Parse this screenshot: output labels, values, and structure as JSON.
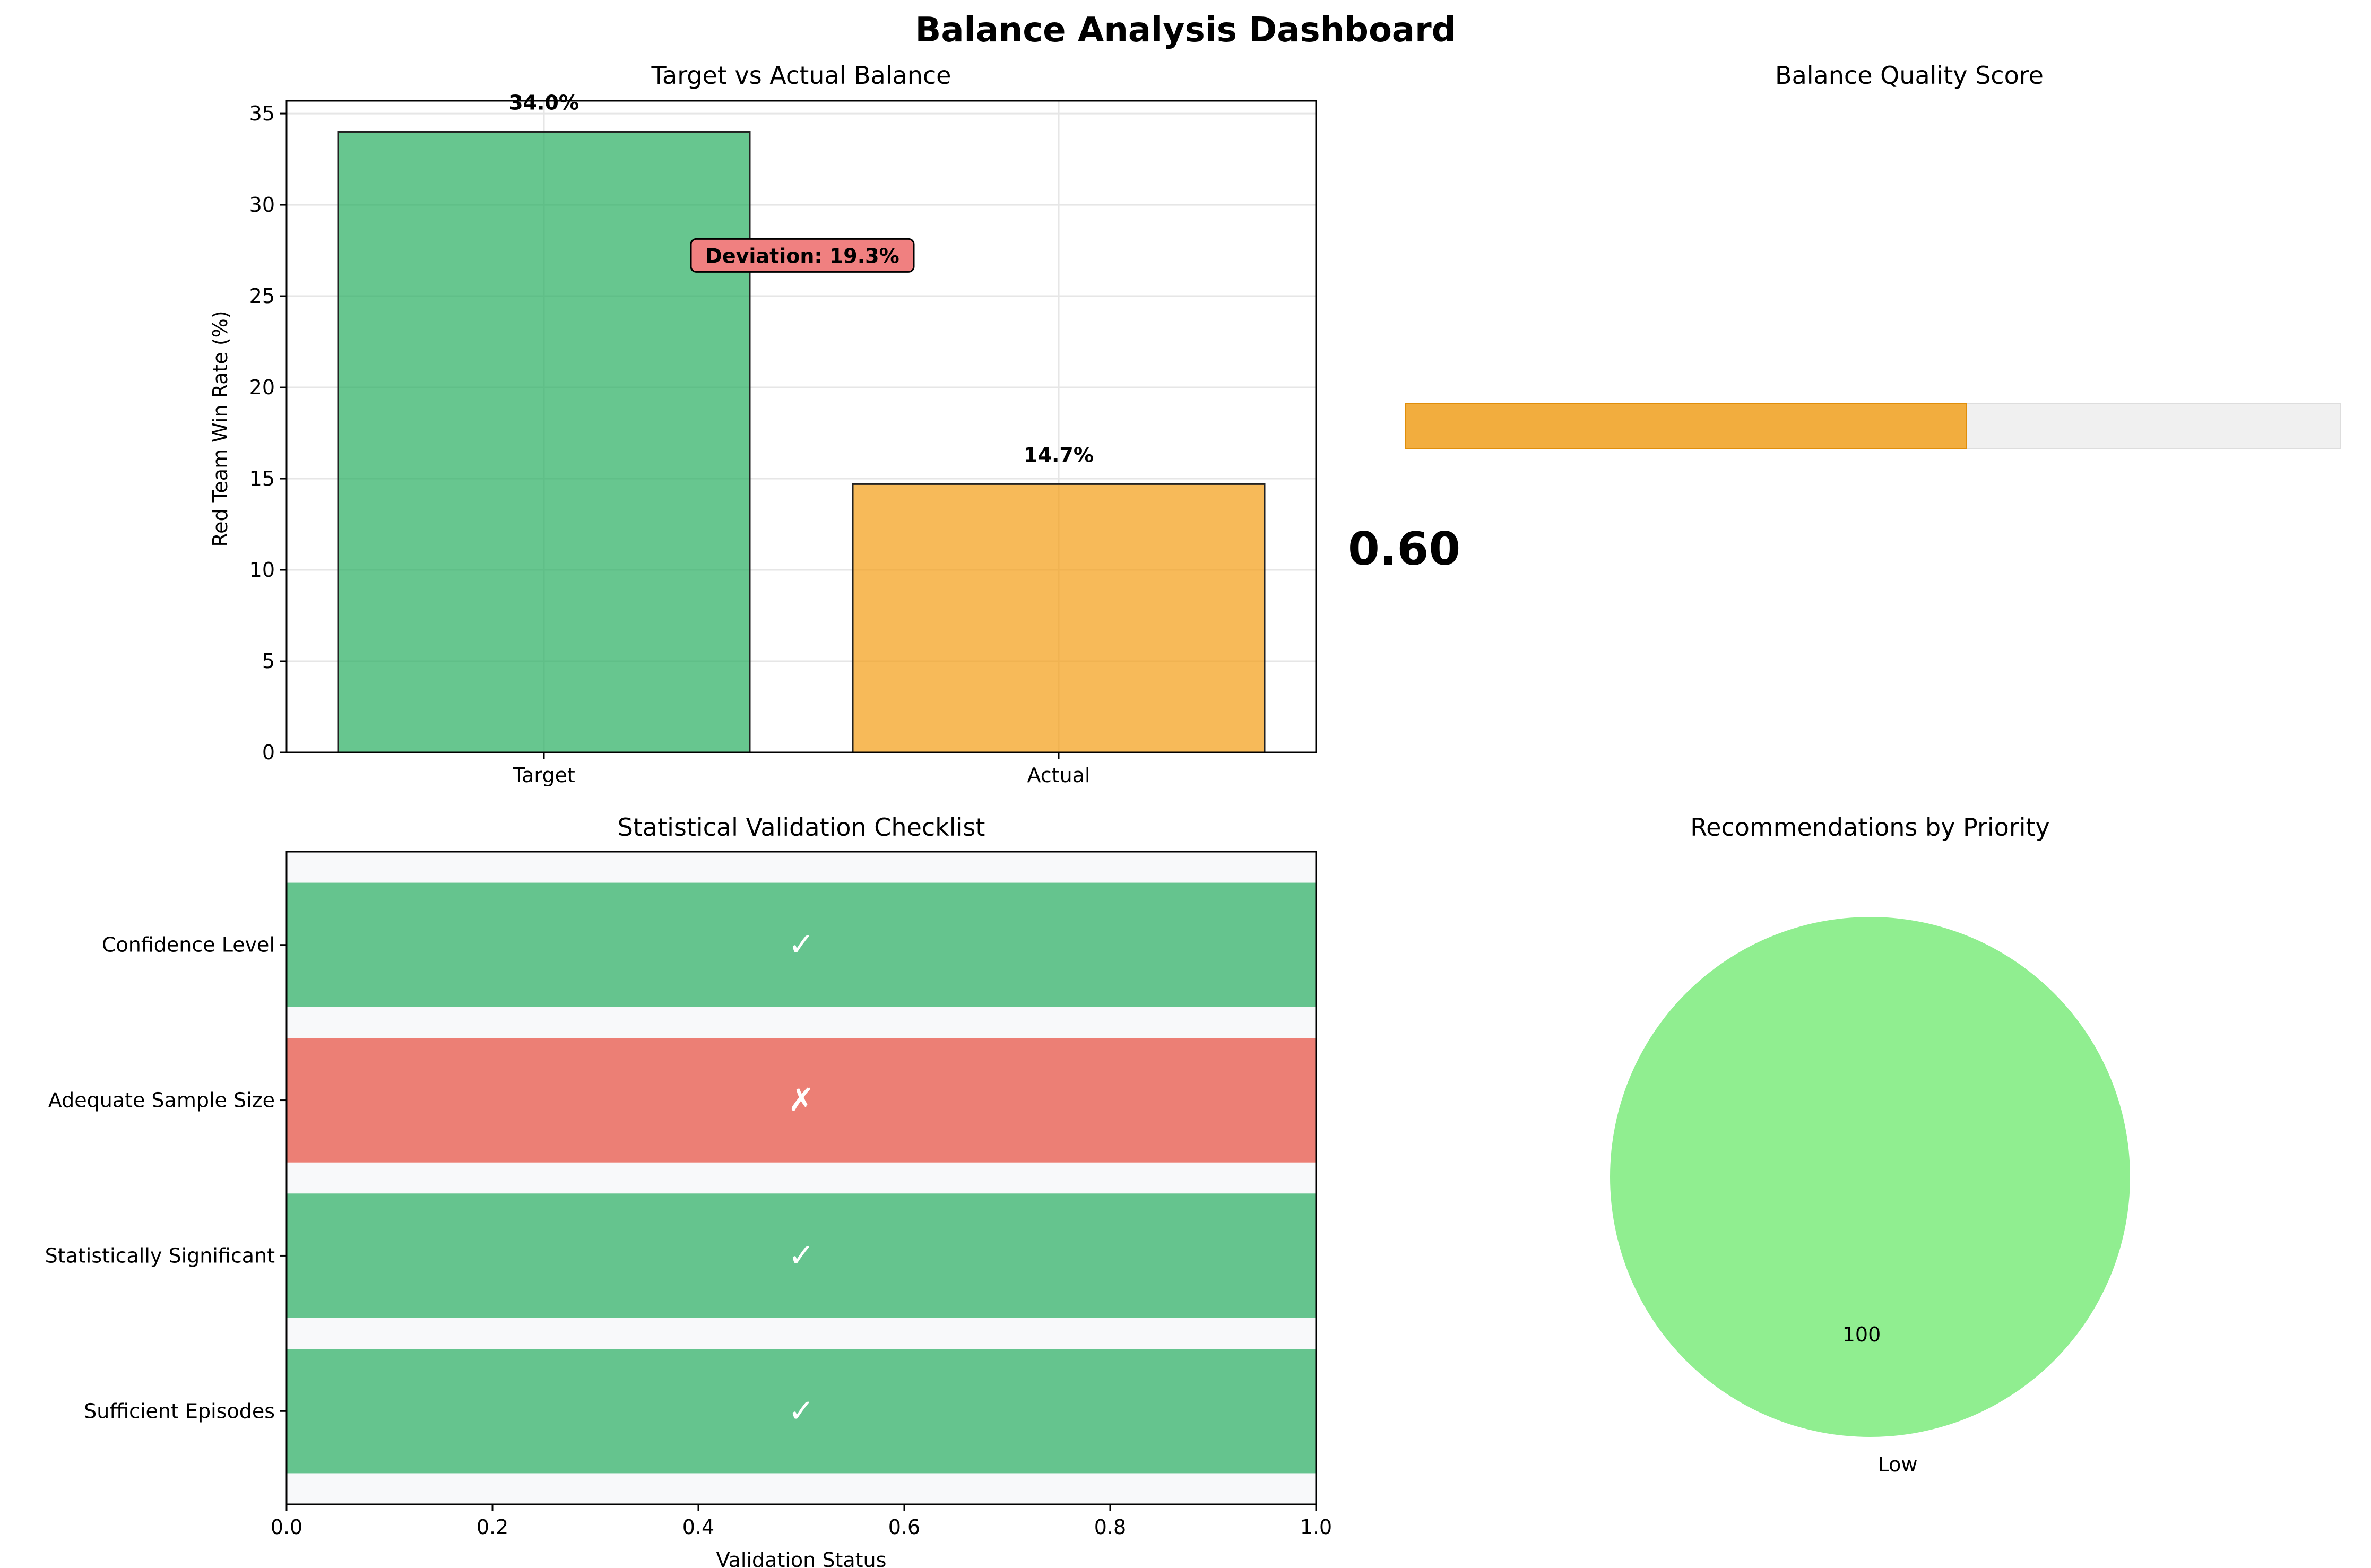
{
  "dashboard": {
    "title": "Balance Analysis Dashboard"
  },
  "chart_data": [
    {
      "id": "balance",
      "type": "bar",
      "title": "Target vs Actual Balance",
      "xlabel": "",
      "ylabel": "Red Team Win Rate (%)",
      "categories": [
        "Target",
        "Actual"
      ],
      "values": [
        34.0,
        14.7
      ],
      "data_labels": [
        "34.0%",
        "14.7%"
      ],
      "colors": [
        "#27ae60",
        "#f39c12"
      ],
      "ylim": [
        0,
        35.7
      ],
      "yticks": [
        0,
        5,
        10,
        15,
        20,
        25,
        30,
        35
      ],
      "grid": true,
      "annotation": {
        "text": "Deviation: 19.3%",
        "color": "#f08080"
      }
    },
    {
      "id": "quality",
      "type": "bar",
      "orientation": "horizontal",
      "title": "Balance Quality Score",
      "value": 0.6,
      "max": 1.0,
      "value_label": "0.60",
      "fill_color": "#f39c12",
      "track_color": "#f0f0f0"
    },
    {
      "id": "checklist",
      "type": "bar",
      "orientation": "horizontal",
      "title": "Statistical Validation Checklist",
      "xlabel": "Validation Status",
      "ylabel": "",
      "categories": [
        "Confidence Level",
        "Adequate Sample Size",
        "Statistically Significant",
        "Sufficient Episodes"
      ],
      "values": [
        1,
        1,
        1,
        1
      ],
      "status": [
        true,
        false,
        true,
        true
      ],
      "marks": [
        "✓",
        "✗",
        "✓",
        "✓"
      ],
      "pass_color": "#27ae60",
      "fail_color": "#e74c3c",
      "xlim": [
        0,
        1.0
      ],
      "xticks": [
        "0.0",
        "0.2",
        "0.4",
        "0.6",
        "0.8",
        "1.0"
      ],
      "grid": false
    },
    {
      "id": "recommendations",
      "type": "pie",
      "title": "Recommendations by Priority",
      "labels": [
        "Low"
      ],
      "values": [
        100
      ],
      "value_labels": [
        "100"
      ],
      "colors": [
        "#90ee90"
      ]
    }
  ]
}
